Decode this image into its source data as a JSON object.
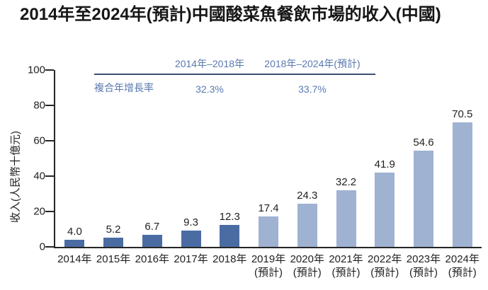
{
  "title": "2014年至2024年(預計)中國酸菜魚餐飲市場的收入(中國)",
  "cagr_table": {
    "row_label": "複合年增長率",
    "columns": [
      {
        "period": "2014年–2018年",
        "value": "32.3%"
      },
      {
        "period": "2018年–2024年(預計)",
        "value": "33.7%"
      }
    ],
    "text_color": "#5a79b0",
    "rule_color": "#3d4e73"
  },
  "chart_data": {
    "type": "bar",
    "title": "2014年至2024年(預計)中國酸菜魚餐飲市場的收入(中國)",
    "xlabel": "",
    "ylabel": "收入(人民幣十億元)",
    "ylim": [
      0,
      100
    ],
    "yticks": [
      0,
      20,
      40,
      60,
      80,
      100
    ],
    "grid": false,
    "legend": "none",
    "bar_colors": {
      "actual": "#4a6ca3",
      "projected": "#9fb2d2"
    },
    "bars": [
      {
        "category": "2014年",
        "sublabel": "",
        "value": 4.0,
        "projected": false
      },
      {
        "category": "2015年",
        "sublabel": "",
        "value": 5.2,
        "projected": false
      },
      {
        "category": "2016年",
        "sublabel": "",
        "value": 6.7,
        "projected": false
      },
      {
        "category": "2017年",
        "sublabel": "",
        "value": 9.3,
        "projected": false
      },
      {
        "category": "2018年",
        "sublabel": "",
        "value": 12.3,
        "projected": false
      },
      {
        "category": "2019年",
        "sublabel": "(預計)",
        "value": 17.4,
        "projected": true
      },
      {
        "category": "2020年",
        "sublabel": "(預計)",
        "value": 24.3,
        "projected": true
      },
      {
        "category": "2021年",
        "sublabel": "(預計)",
        "value": 32.2,
        "projected": true
      },
      {
        "category": "2022年",
        "sublabel": "(預計)",
        "value": 41.9,
        "projected": true
      },
      {
        "category": "2023年",
        "sublabel": "(預計)",
        "value": 54.6,
        "projected": true
      },
      {
        "category": "2024年",
        "sublabel": "(預計)",
        "value": 70.5,
        "projected": true
      }
    ]
  }
}
